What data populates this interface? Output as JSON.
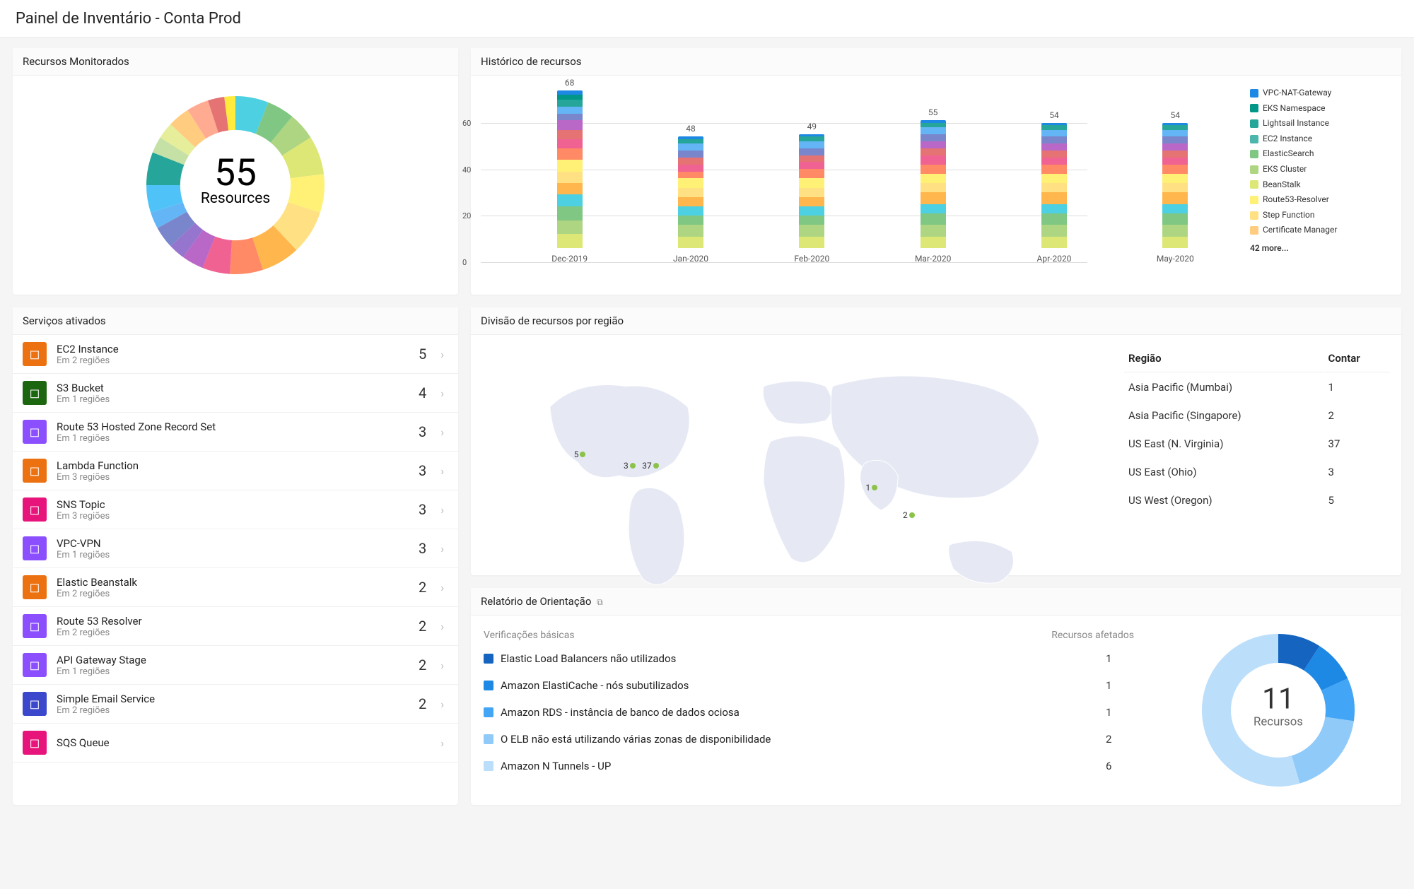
{
  "header": {
    "title": "Painel de Inventário - Conta Prod"
  },
  "monitored": {
    "title": "Recursos Monitorados",
    "center_value": "55",
    "center_label": "Resources",
    "donut": {
      "inner_radius_ratio": 0.62,
      "slices": [
        {
          "value": 6,
          "color": "#4dd0e1"
        },
        {
          "value": 5,
          "color": "#81c784"
        },
        {
          "value": 5,
          "color": "#aed581"
        },
        {
          "value": 7,
          "color": "#dce775"
        },
        {
          "value": 7,
          "color": "#fff176"
        },
        {
          "value": 8,
          "color": "#ffe082"
        },
        {
          "value": 7,
          "color": "#ffb74d"
        },
        {
          "value": 6,
          "color": "#ff8a65"
        },
        {
          "value": 5,
          "color": "#f06292"
        },
        {
          "value": 4,
          "color": "#ba68c8"
        },
        {
          "value": 3,
          "color": "#9575cd"
        },
        {
          "value": 4,
          "color": "#7986cb"
        },
        {
          "value": 3,
          "color": "#64b5f6"
        },
        {
          "value": 5,
          "color": "#4fc3f7"
        },
        {
          "value": 6,
          "color": "#26a69a"
        },
        {
          "value": 3,
          "color": "#c5e1a5"
        },
        {
          "value": 3,
          "color": "#e6ee9c"
        },
        {
          "value": 4,
          "color": "#ffcc80"
        },
        {
          "value": 4,
          "color": "#ffab91"
        },
        {
          "value": 3,
          "color": "#e57373"
        },
        {
          "value": 2,
          "color": "#ffeb3b"
        }
      ]
    }
  },
  "history": {
    "title": "Histórico de recursos",
    "y_max": 70,
    "y_ticks": [
      0,
      20,
      40,
      60
    ],
    "bars": [
      {
        "label": "Dec-2019",
        "total": 68,
        "segments": [
          {
            "v": 6,
            "c": "#dce775"
          },
          {
            "v": 6,
            "c": "#aed581"
          },
          {
            "v": 6,
            "c": "#81c784"
          },
          {
            "v": 5,
            "c": "#4dd0e1"
          },
          {
            "v": 5,
            "c": "#ffb74d"
          },
          {
            "v": 5,
            "c": "#ffe082"
          },
          {
            "v": 5,
            "c": "#fff176"
          },
          {
            "v": 5,
            "c": "#ff8a65"
          },
          {
            "v": 4,
            "c": "#f06292"
          },
          {
            "v": 4,
            "c": "#e57373"
          },
          {
            "v": 4,
            "c": "#ba68c8"
          },
          {
            "v": 3,
            "c": "#7986cb"
          },
          {
            "v": 3,
            "c": "#64b5f6"
          },
          {
            "v": 3,
            "c": "#26a69a"
          },
          {
            "v": 2,
            "c": "#009688"
          },
          {
            "v": 2,
            "c": "#1e88e5"
          }
        ]
      },
      {
        "label": "Jan-2020",
        "total": 48,
        "segments": [
          {
            "v": 5,
            "c": "#dce775"
          },
          {
            "v": 5,
            "c": "#aed581"
          },
          {
            "v": 4,
            "c": "#81c784"
          },
          {
            "v": 4,
            "c": "#4dd0e1"
          },
          {
            "v": 4,
            "c": "#ffb74d"
          },
          {
            "v": 4,
            "c": "#ffe082"
          },
          {
            "v": 4,
            "c": "#fff176"
          },
          {
            "v": 3,
            "c": "#ff8a65"
          },
          {
            "v": 3,
            "c": "#f06292"
          },
          {
            "v": 3,
            "c": "#e57373"
          },
          {
            "v": 3,
            "c": "#7986cb"
          },
          {
            "v": 3,
            "c": "#64b5f6"
          },
          {
            "v": 2,
            "c": "#26a69a"
          },
          {
            "v": 1,
            "c": "#1e88e5"
          }
        ]
      },
      {
        "label": "Feb-2020",
        "total": 49,
        "segments": [
          {
            "v": 5,
            "c": "#dce775"
          },
          {
            "v": 5,
            "c": "#aed581"
          },
          {
            "v": 4,
            "c": "#81c784"
          },
          {
            "v": 4,
            "c": "#4dd0e1"
          },
          {
            "v": 4,
            "c": "#ffb74d"
          },
          {
            "v": 4,
            "c": "#ffe082"
          },
          {
            "v": 4,
            "c": "#fff176"
          },
          {
            "v": 4,
            "c": "#ff8a65"
          },
          {
            "v": 3,
            "c": "#f06292"
          },
          {
            "v": 3,
            "c": "#e57373"
          },
          {
            "v": 3,
            "c": "#7986cb"
          },
          {
            "v": 3,
            "c": "#64b5f6"
          },
          {
            "v": 2,
            "c": "#26a69a"
          },
          {
            "v": 1,
            "c": "#1e88e5"
          }
        ]
      },
      {
        "label": "Mar-2020",
        "total": 55,
        "segments": [
          {
            "v": 5,
            "c": "#dce775"
          },
          {
            "v": 5,
            "c": "#aed581"
          },
          {
            "v": 5,
            "c": "#81c784"
          },
          {
            "v": 4,
            "c": "#4dd0e1"
          },
          {
            "v": 5,
            "c": "#ffb74d"
          },
          {
            "v": 4,
            "c": "#ffe082"
          },
          {
            "v": 4,
            "c": "#fff176"
          },
          {
            "v": 4,
            "c": "#ff8a65"
          },
          {
            "v": 4,
            "c": "#f06292"
          },
          {
            "v": 3,
            "c": "#e57373"
          },
          {
            "v": 3,
            "c": "#ba68c8"
          },
          {
            "v": 3,
            "c": "#7986cb"
          },
          {
            "v": 3,
            "c": "#64b5f6"
          },
          {
            "v": 2,
            "c": "#26a69a"
          },
          {
            "v": 1,
            "c": "#1e88e5"
          }
        ]
      },
      {
        "label": "Apr-2020",
        "total": 54,
        "segments": [
          {
            "v": 5,
            "c": "#dce775"
          },
          {
            "v": 5,
            "c": "#aed581"
          },
          {
            "v": 5,
            "c": "#81c784"
          },
          {
            "v": 4,
            "c": "#4dd0e1"
          },
          {
            "v": 5,
            "c": "#ffb74d"
          },
          {
            "v": 4,
            "c": "#ffe082"
          },
          {
            "v": 4,
            "c": "#fff176"
          },
          {
            "v": 4,
            "c": "#ff8a65"
          },
          {
            "v": 3,
            "c": "#f06292"
          },
          {
            "v": 3,
            "c": "#e57373"
          },
          {
            "v": 3,
            "c": "#ba68c8"
          },
          {
            "v": 3,
            "c": "#7986cb"
          },
          {
            "v": 3,
            "c": "#64b5f6"
          },
          {
            "v": 2,
            "c": "#26a69a"
          },
          {
            "v": 1,
            "c": "#1e88e5"
          }
        ]
      },
      {
        "label": "May-2020",
        "total": 54,
        "segments": [
          {
            "v": 5,
            "c": "#dce775"
          },
          {
            "v": 5,
            "c": "#aed581"
          },
          {
            "v": 5,
            "c": "#81c784"
          },
          {
            "v": 4,
            "c": "#4dd0e1"
          },
          {
            "v": 5,
            "c": "#ffb74d"
          },
          {
            "v": 4,
            "c": "#ffe082"
          },
          {
            "v": 4,
            "c": "#fff176"
          },
          {
            "v": 4,
            "c": "#ff8a65"
          },
          {
            "v": 3,
            "c": "#f06292"
          },
          {
            "v": 3,
            "c": "#e57373"
          },
          {
            "v": 3,
            "c": "#ba68c8"
          },
          {
            "v": 3,
            "c": "#7986cb"
          },
          {
            "v": 3,
            "c": "#64b5f6"
          },
          {
            "v": 2,
            "c": "#26a69a"
          },
          {
            "v": 1,
            "c": "#1e88e5"
          }
        ]
      }
    ],
    "legend": [
      {
        "label": "VPC-NAT-Gateway",
        "color": "#1e88e5"
      },
      {
        "label": "EKS Namespace",
        "color": "#009688"
      },
      {
        "label": "Lightsail Instance",
        "color": "#26a69a"
      },
      {
        "label": "EC2 Instance",
        "color": "#4db6ac"
      },
      {
        "label": "ElasticSearch",
        "color": "#81c784"
      },
      {
        "label": "EKS Cluster",
        "color": "#aed581"
      },
      {
        "label": "BeanStalk",
        "color": "#dce775"
      },
      {
        "label": "Route53-Resolver",
        "color": "#fff176"
      },
      {
        "label": "Step Function",
        "color": "#ffe082"
      },
      {
        "label": "Certificate Manager",
        "color": "#ffcc80"
      }
    ],
    "legend_more": "42 more..."
  },
  "services": {
    "title": "Serviços ativados",
    "items": [
      {
        "name": "EC2 Instance",
        "sub": "Em 2 regiões",
        "count": "5",
        "icon": "ec2",
        "color": "#ec7211"
      },
      {
        "name": "S3 Bucket",
        "sub": "Em 1 regiões",
        "count": "4",
        "icon": "s3",
        "color": "#1b660f"
      },
      {
        "name": "Route 53 Hosted Zone Record Set",
        "sub": "Em 1 regiões",
        "count": "3",
        "icon": "route53",
        "color": "#8c4fff"
      },
      {
        "name": "Lambda Function",
        "sub": "Em 3 regiões",
        "count": "3",
        "icon": "lambda",
        "color": "#ec7211"
      },
      {
        "name": "SNS Topic",
        "sub": "Em 3 regiões",
        "count": "3",
        "icon": "sns",
        "color": "#e7157b"
      },
      {
        "name": "VPC-VPN",
        "sub": "Em 1 regiões",
        "count": "3",
        "icon": "vpc",
        "color": "#8c4fff"
      },
      {
        "name": "Elastic Beanstalk",
        "sub": "Em 2 regiões",
        "count": "2",
        "icon": "beanstalk",
        "color": "#ec7211"
      },
      {
        "name": "Route 53 Resolver",
        "sub": "Em 2 regiões",
        "count": "2",
        "icon": "resolver",
        "color": "#8c4fff"
      },
      {
        "name": "API Gateway Stage",
        "sub": "Em 1 regiões",
        "count": "2",
        "icon": "apigw",
        "color": "#8c4fff"
      },
      {
        "name": "Simple Email Service",
        "sub": "Em 2 regiões",
        "count": "2",
        "icon": "ses",
        "color": "#3b48cc"
      },
      {
        "name": "SQS Queue",
        "sub": "",
        "count": "",
        "icon": "sqs",
        "color": "#e7157b"
      }
    ]
  },
  "regions": {
    "title": "Divisão de recursos por região",
    "table_headers": {
      "region": "Região",
      "count": "Contar"
    },
    "table": [
      {
        "region": "Asia Pacific (Mumbai)",
        "count": "1"
      },
      {
        "region": "Asia Pacific (Singapore)",
        "count": "2"
      },
      {
        "region": "US East (N. Virginia)",
        "count": "37"
      },
      {
        "region": "US East (Ohio)",
        "count": "3"
      },
      {
        "region": "US West (Oregon)",
        "count": "5"
      }
    ],
    "map_points": [
      {
        "label": "5",
        "x": 15,
        "y": 38
      },
      {
        "label": "3",
        "x": 23,
        "y": 42
      },
      {
        "label": "37",
        "x": 26,
        "y": 42
      },
      {
        "label": "1",
        "x": 62,
        "y": 50
      },
      {
        "label": "2",
        "x": 68,
        "y": 60
      }
    ]
  },
  "guidance": {
    "title": "Relatório de Orientação",
    "col1": "Verificações básicas",
    "col2": "Recursos afetados",
    "rows": [
      {
        "label": "Elastic Load Balancers não utilizados",
        "val": "1",
        "color": "#1565c0"
      },
      {
        "label": "Amazon ElastiCache - nós subutilizados",
        "val": "1",
        "color": "#1e88e5"
      },
      {
        "label": "Amazon RDS - instância de banco de dados ociosa",
        "val": "1",
        "color": "#42a5f5"
      },
      {
        "label": "O ELB não está utilizando várias zonas de disponibilidade",
        "val": "2",
        "color": "#90caf9"
      },
      {
        "label": "Amazon N Tunnels - UP",
        "val": "6",
        "color": "#bbdefb"
      }
    ],
    "donut": {
      "center_value": "11",
      "center_label": "Recursos",
      "inner_radius_ratio": 0.62,
      "slices": [
        {
          "value": 1,
          "color": "#1565c0"
        },
        {
          "value": 1,
          "color": "#1e88e5"
        },
        {
          "value": 1,
          "color": "#42a5f5"
        },
        {
          "value": 2,
          "color": "#90caf9"
        },
        {
          "value": 6,
          "color": "#bbdefb"
        }
      ]
    }
  }
}
